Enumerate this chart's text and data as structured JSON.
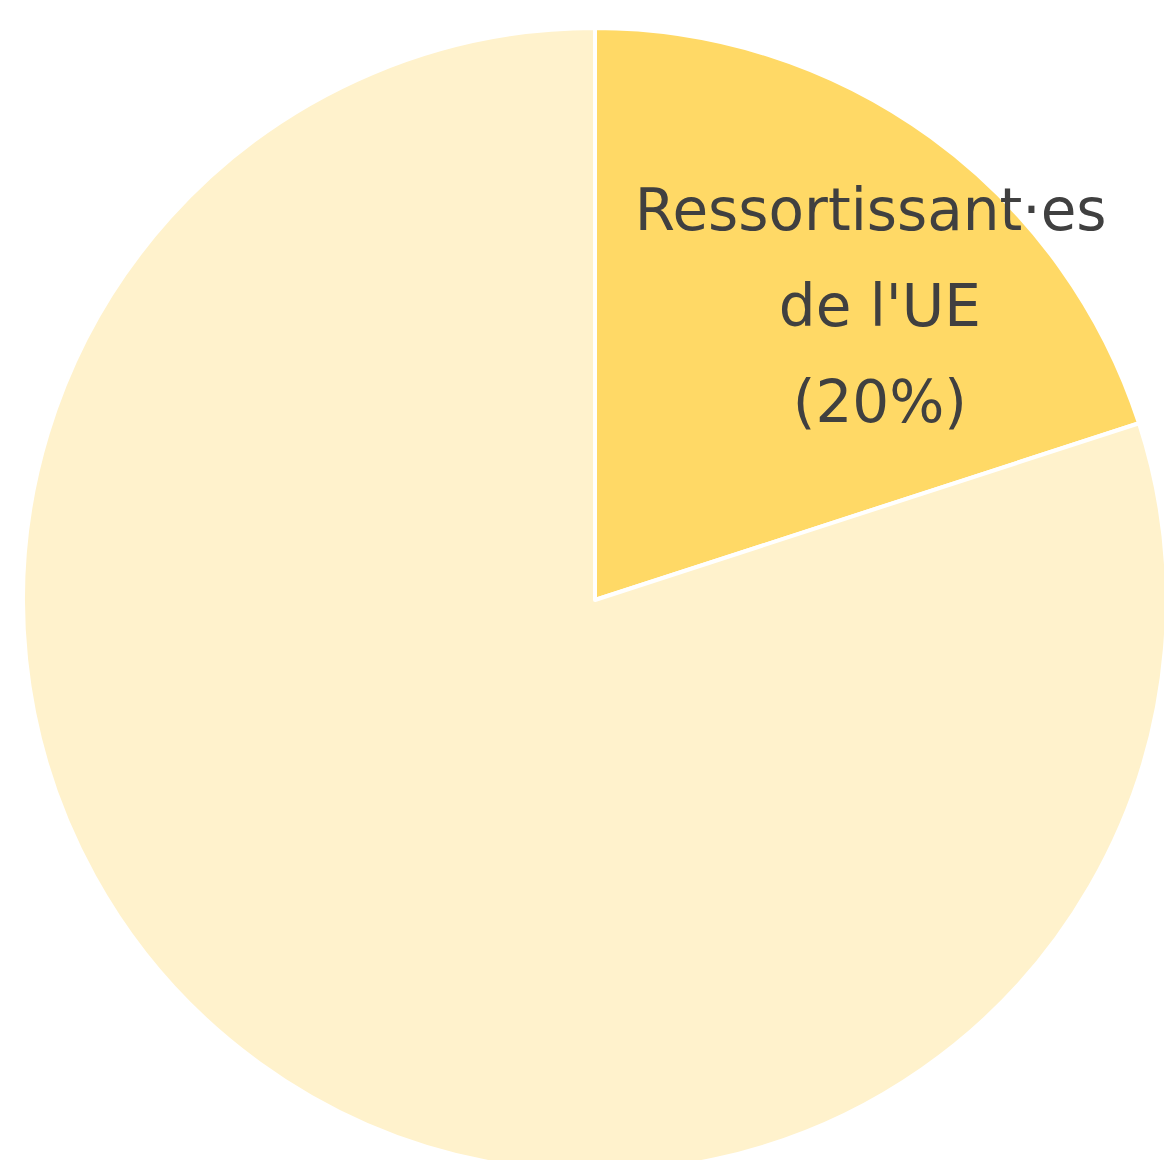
{
  "chart_data": {
    "type": "pie",
    "categories": [
      "Ressortissant·es de l'UE",
      null
    ],
    "values": [
      20,
      80
    ],
    "colors": [
      "#ffd966",
      "#fff2cc"
    ],
    "value_labels": [
      "(20%)",
      null
    ]
  }
}
